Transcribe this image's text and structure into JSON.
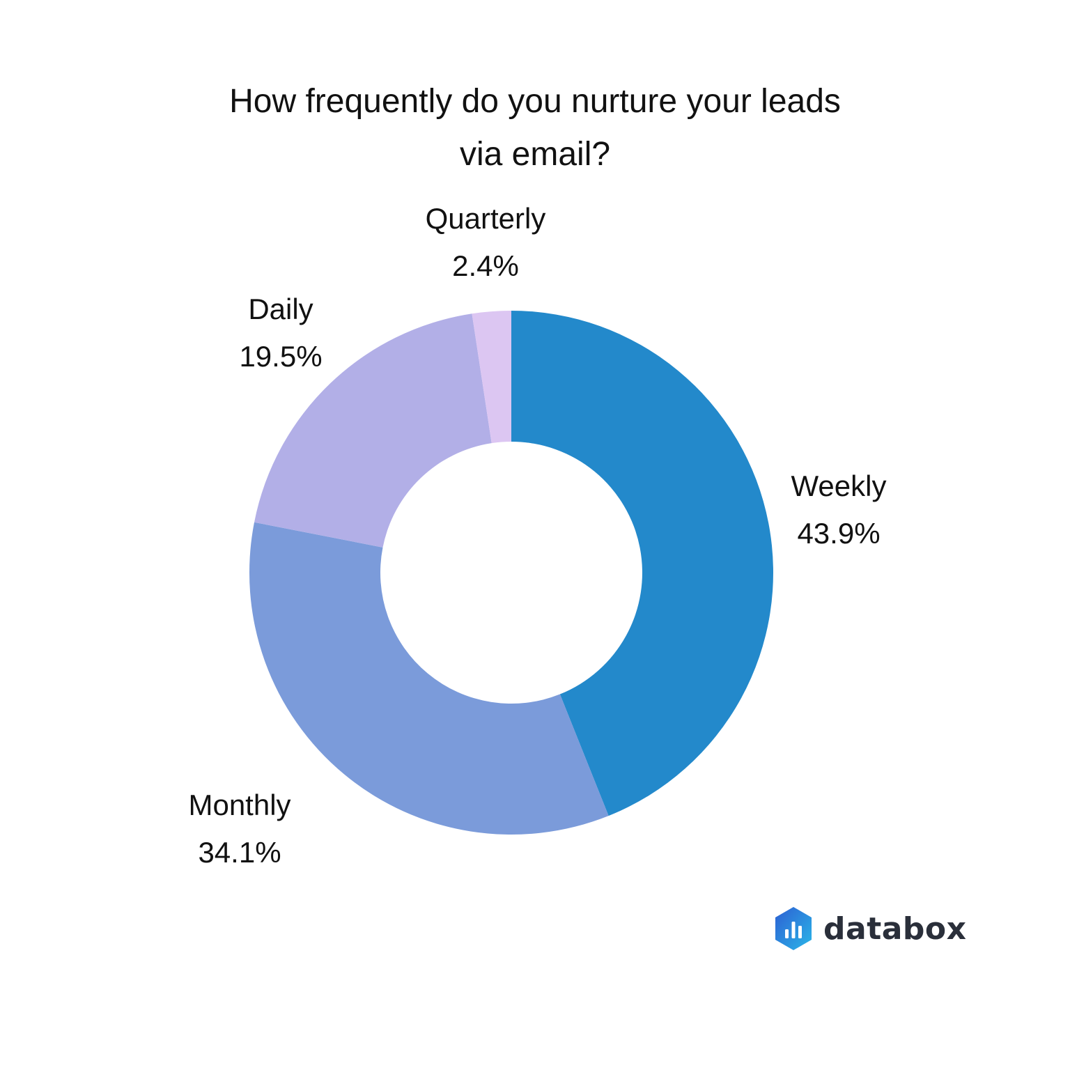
{
  "chart_data": {
    "type": "pie",
    "variant": "donut",
    "title_lines": [
      "How frequently do you nurture your leads",
      "via email?"
    ],
    "categories": [
      "Weekly",
      "Monthly",
      "Daily",
      "Quarterly"
    ],
    "values": [
      43.9,
      34.1,
      19.5,
      2.4
    ],
    "value_labels": [
      "43.9%",
      "34.1%",
      "19.5%",
      "2.4%"
    ],
    "colors": [
      "#2389cb",
      "#7b9bda",
      "#b2afe7",
      "#dcc6f2"
    ],
    "start_angle": "12 o'clock",
    "direction": "clockwise",
    "legend": "none (labels beside slices)"
  },
  "brand": {
    "name": "databox",
    "logo_colors": [
      "#2d5fd3",
      "#2ab6e8"
    ]
  }
}
